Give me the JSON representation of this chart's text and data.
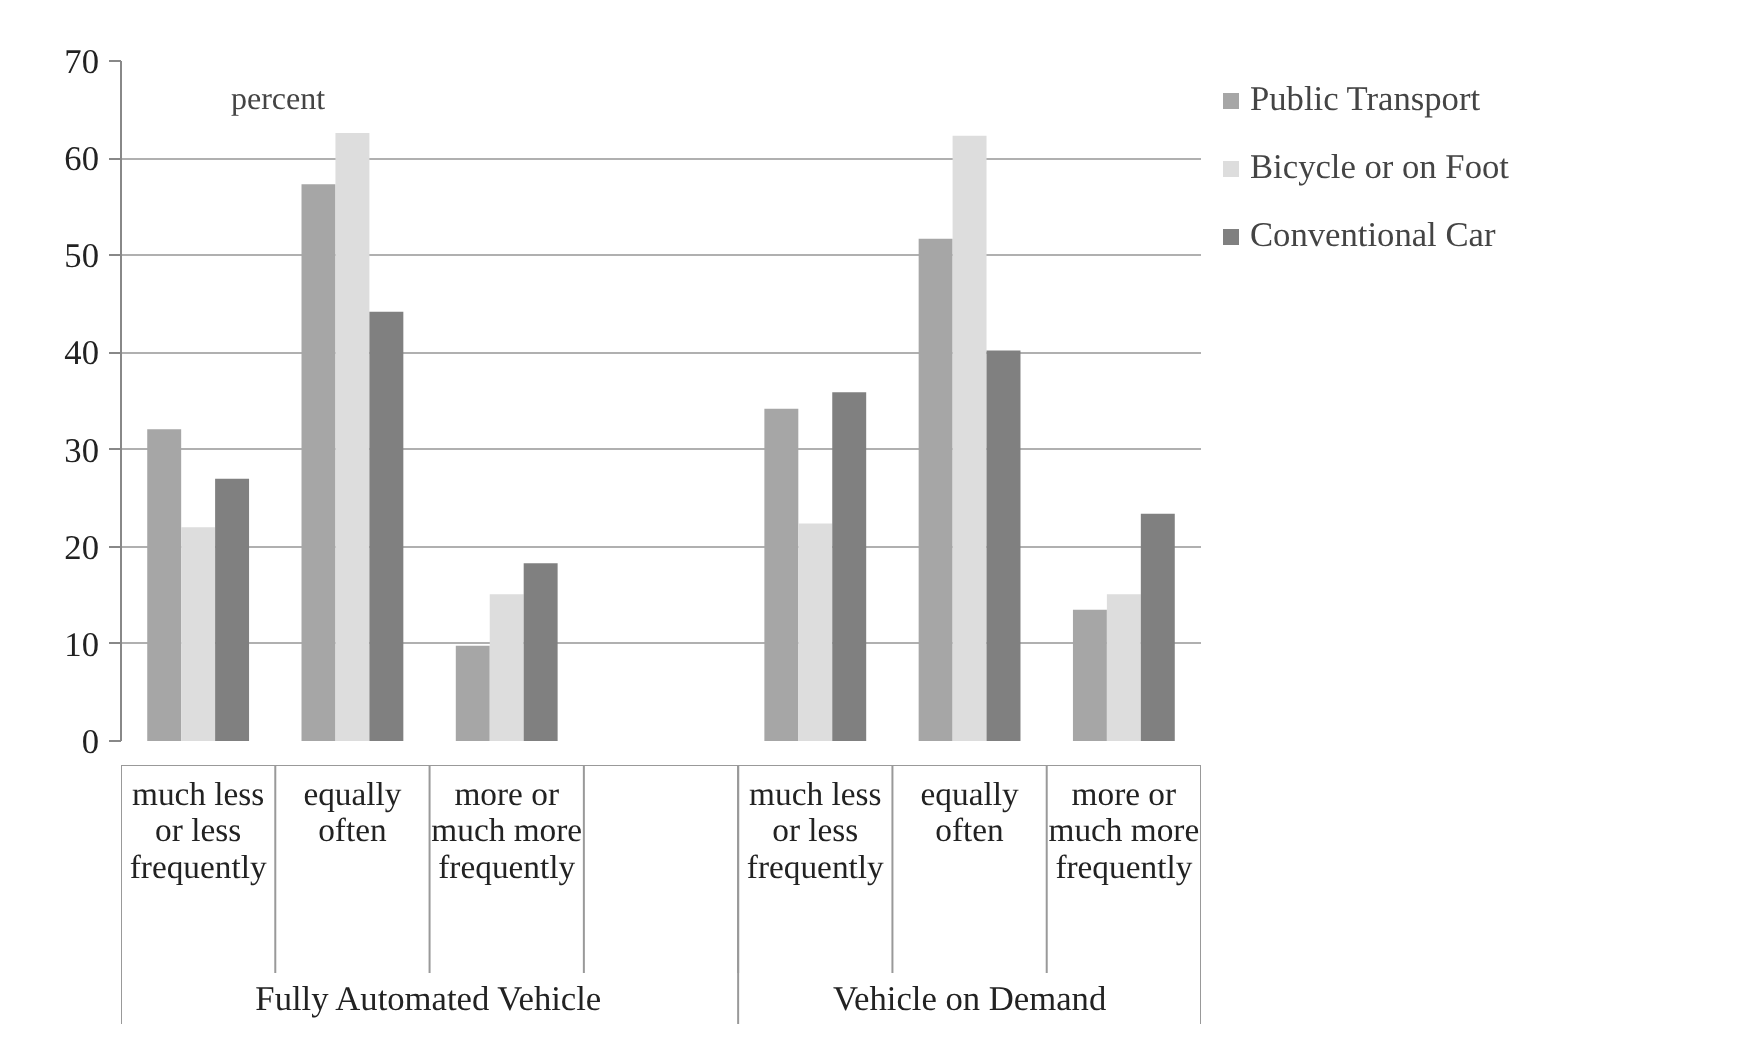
{
  "chart_data": {
    "type": "bar",
    "ylabel": "percent",
    "categories": [
      "much less or less frequently",
      "equally often",
      "more or much more frequently",
      null,
      "much less or less frequently",
      "equally often",
      "more or much more frequently"
    ],
    "series": [
      {
        "name": "Public Transport",
        "color": "#a6a6a6",
        "values": [
          32.1,
          57.3,
          9.8,
          null,
          34.2,
          51.7,
          13.5
        ]
      },
      {
        "name": "Bicycle or on Foot",
        "color": "#dddddd",
        "values": [
          22.0,
          62.6,
          15.1,
          null,
          22.4,
          62.3,
          15.1
        ]
      },
      {
        "name": "Conventional Car",
        "color": "#808080",
        "values": [
          27.0,
          44.2,
          18.3,
          null,
          35.9,
          40.2,
          23.4
        ]
      }
    ],
    "annotations": [
      "Fully Automated Vehicle",
      "Vehicle on Demand"
    ],
    "ylim": [
      0,
      70
    ],
    "yticks": [
      0,
      10,
      20,
      30,
      40,
      50,
      60,
      70
    ],
    "grid": "y",
    "legend": "right"
  }
}
